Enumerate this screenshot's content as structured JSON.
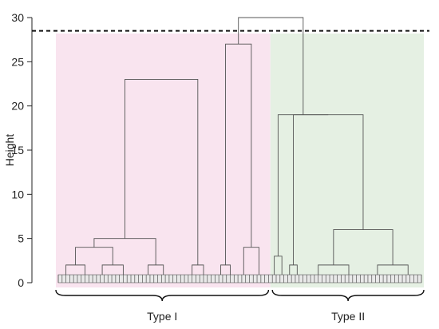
{
  "chart_data": {
    "type": "dendrogram",
    "ylabel": "Height",
    "ylim": [
      0,
      31
    ],
    "yticks": [
      0,
      5,
      10,
      15,
      20,
      25,
      30
    ],
    "cut_height": 28.5,
    "leaf_count": 96,
    "groups": [
      {
        "label": "Type I",
        "leaf_range": [
          0,
          55
        ],
        "color": "#f9e4ef"
      },
      {
        "label": "Type II",
        "leaf_range": [
          56,
          95
        ],
        "color": "#e5f0e3"
      }
    ],
    "merges": [
      {
        "id": "a1",
        "left": [
          0,
          4
        ],
        "right": [
          5,
          9
        ],
        "height": 2.0
      },
      {
        "id": "a2",
        "left": [
          10,
          13
        ],
        "right": [
          14,
          20
        ],
        "height": 2.0
      },
      {
        "id": "a3",
        "left": "a1",
        "right": "a2",
        "height": 4.0
      },
      {
        "id": "a4",
        "left": [
          22,
          25
        ],
        "right": [
          26,
          29
        ],
        "height": 2.0
      },
      {
        "id": "a5",
        "left": "a3",
        "right": "a4",
        "height": 5.0
      },
      {
        "id": "a6",
        "left": [
          34,
          36
        ],
        "right": [
          37,
          39
        ],
        "height": 2.0
      },
      {
        "id": "a7",
        "left": "a5",
        "right": "a6",
        "height": 23.0
      },
      {
        "id": "b1",
        "left": [
          42,
          43
        ],
        "right": [
          44,
          46
        ],
        "height": 2.0
      },
      {
        "id": "b2",
        "left": [
          47,
          50
        ],
        "right": [
          51,
          54
        ],
        "height": 4.0
      },
      {
        "id": "b3",
        "left": "b1",
        "right": "b2",
        "height": 27.0
      },
      {
        "id": "c1",
        "left": [
          56,
          57
        ],
        "right": [
          58,
          59
        ],
        "height": 3.0
      },
      {
        "id": "c2",
        "left": [
          60,
          61
        ],
        "right": [
          62,
          63
        ],
        "height": 2.0
      },
      {
        "id": "c3",
        "left": [
          64,
          72
        ],
        "right": [
          73,
          79
        ],
        "height": 2.0
      },
      {
        "id": "c4",
        "left": [
          80,
          87
        ],
        "right": [
          88,
          95
        ],
        "height": 2.0
      },
      {
        "id": "c5",
        "left": "c3",
        "right": "c4",
        "height": 6.0
      },
      {
        "id": "c6",
        "left": "c2",
        "right": "c5",
        "height": 19.0
      },
      {
        "id": "c7",
        "left": "c1",
        "right": "c6",
        "height": 19.0
      },
      {
        "id": "root",
        "left": "b3",
        "right": "c7",
        "height": 30.0
      }
    ]
  }
}
